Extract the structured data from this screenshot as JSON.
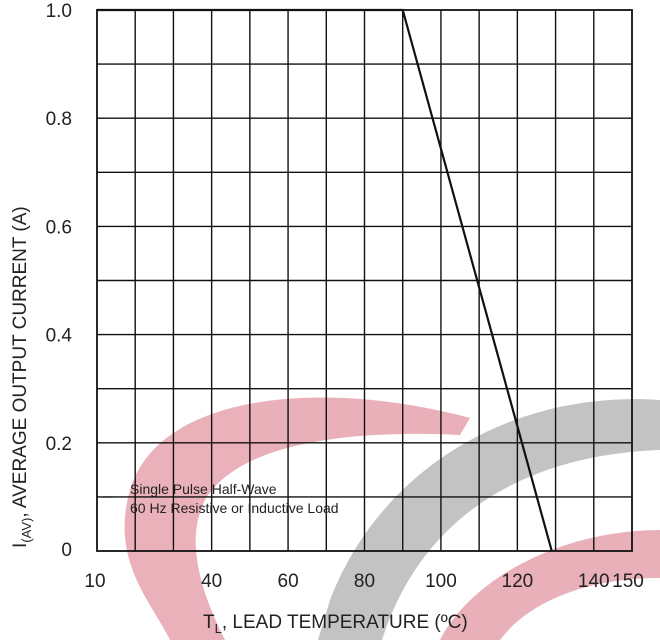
{
  "chart_data": {
    "type": "line",
    "xlabel": "T",
    "xlabel_sub": "L",
    "xlabel_rest": ", LEAD TEMPERATURE (ºC)",
    "ylabel": "I",
    "ylabel_sub": "(AV)",
    "ylabel_rest": ", AVERAGE OUTPUT CURRENT (A)",
    "xlim": [
      10,
      150
    ],
    "ylim": [
      0,
      1.0
    ],
    "x_ticks": [
      {
        "value": 10,
        "label": "10"
      },
      {
        "value": 40,
        "label": "40"
      },
      {
        "value": 60,
        "label": "60"
      },
      {
        "value": 80,
        "label": "80"
      },
      {
        "value": 100,
        "label": "100"
      },
      {
        "value": 120,
        "label": "120"
      },
      {
        "value": 140,
        "label": "140"
      },
      {
        "value": 150,
        "label": "150"
      }
    ],
    "y_ticks": [
      {
        "value": 0,
        "label": "0"
      },
      {
        "value": 0.2,
        "label": "0.2"
      },
      {
        "value": 0.4,
        "label": "0.4"
      },
      {
        "value": 0.6,
        "label": "0.6"
      },
      {
        "value": 0.8,
        "label": "0.8"
      },
      {
        "value": 1.0,
        "label": "1.0"
      }
    ],
    "grid": true,
    "legend_lines": [
      "Single Pulse Half-Wave",
      "60 Hz Resistive or Inductive Load"
    ],
    "legend_placement": "bottom-left",
    "series": [
      {
        "x": [
          10,
          90,
          129
        ],
        "y": [
          1.0,
          1.0,
          0
        ]
      }
    ]
  }
}
